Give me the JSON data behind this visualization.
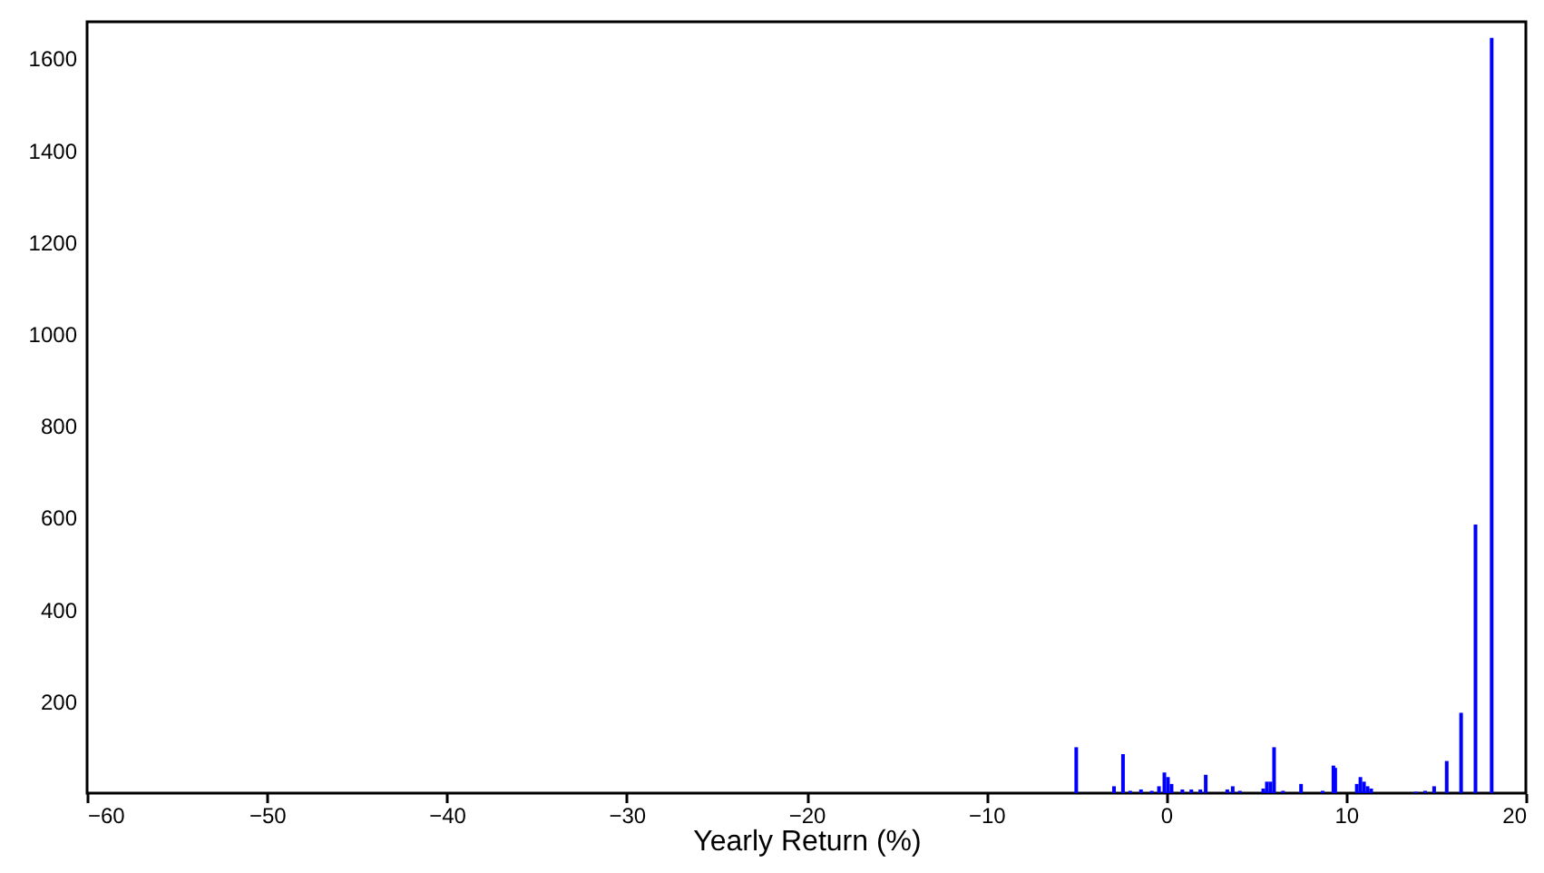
{
  "chart_data": {
    "type": "bar",
    "xlabel": "Yearly Return (%)",
    "color": "#0000ff",
    "x": [
      -5.0,
      -2.9,
      -2.4,
      -2.0,
      -1.4,
      -0.8,
      -0.4,
      -0.1,
      0.1,
      0.3,
      0.9,
      1.4,
      1.9,
      2.2,
      3.4,
      3.7,
      4.1,
      5.4,
      5.6,
      5.8,
      6.0,
      6.5,
      7.5,
      8.7,
      9.3,
      9.4,
      10.6,
      10.8,
      11.0,
      11.2,
      11.4,
      13.9,
      14.4,
      14.9,
      15.6,
      16.4,
      17.2,
      18.1
    ],
    "values": [
      100,
      15,
      85,
      5,
      8,
      5,
      15,
      45,
      35,
      20,
      8,
      8,
      8,
      40,
      8,
      15,
      5,
      10,
      25,
      25,
      100,
      5,
      20,
      5,
      60,
      55,
      20,
      35,
      25,
      15,
      10,
      3,
      5,
      15,
      70,
      175,
      585,
      1645
    ],
    "xlim": [
      -60,
      20
    ],
    "xticks": [
      -60,
      -50,
      -40,
      -30,
      -20,
      -10,
      0,
      10,
      20
    ],
    "ylim": [
      0,
      1680
    ],
    "yticks": [
      200,
      400,
      600,
      800,
      1000,
      1200,
      1400,
      1600
    ],
    "grid": false
  }
}
